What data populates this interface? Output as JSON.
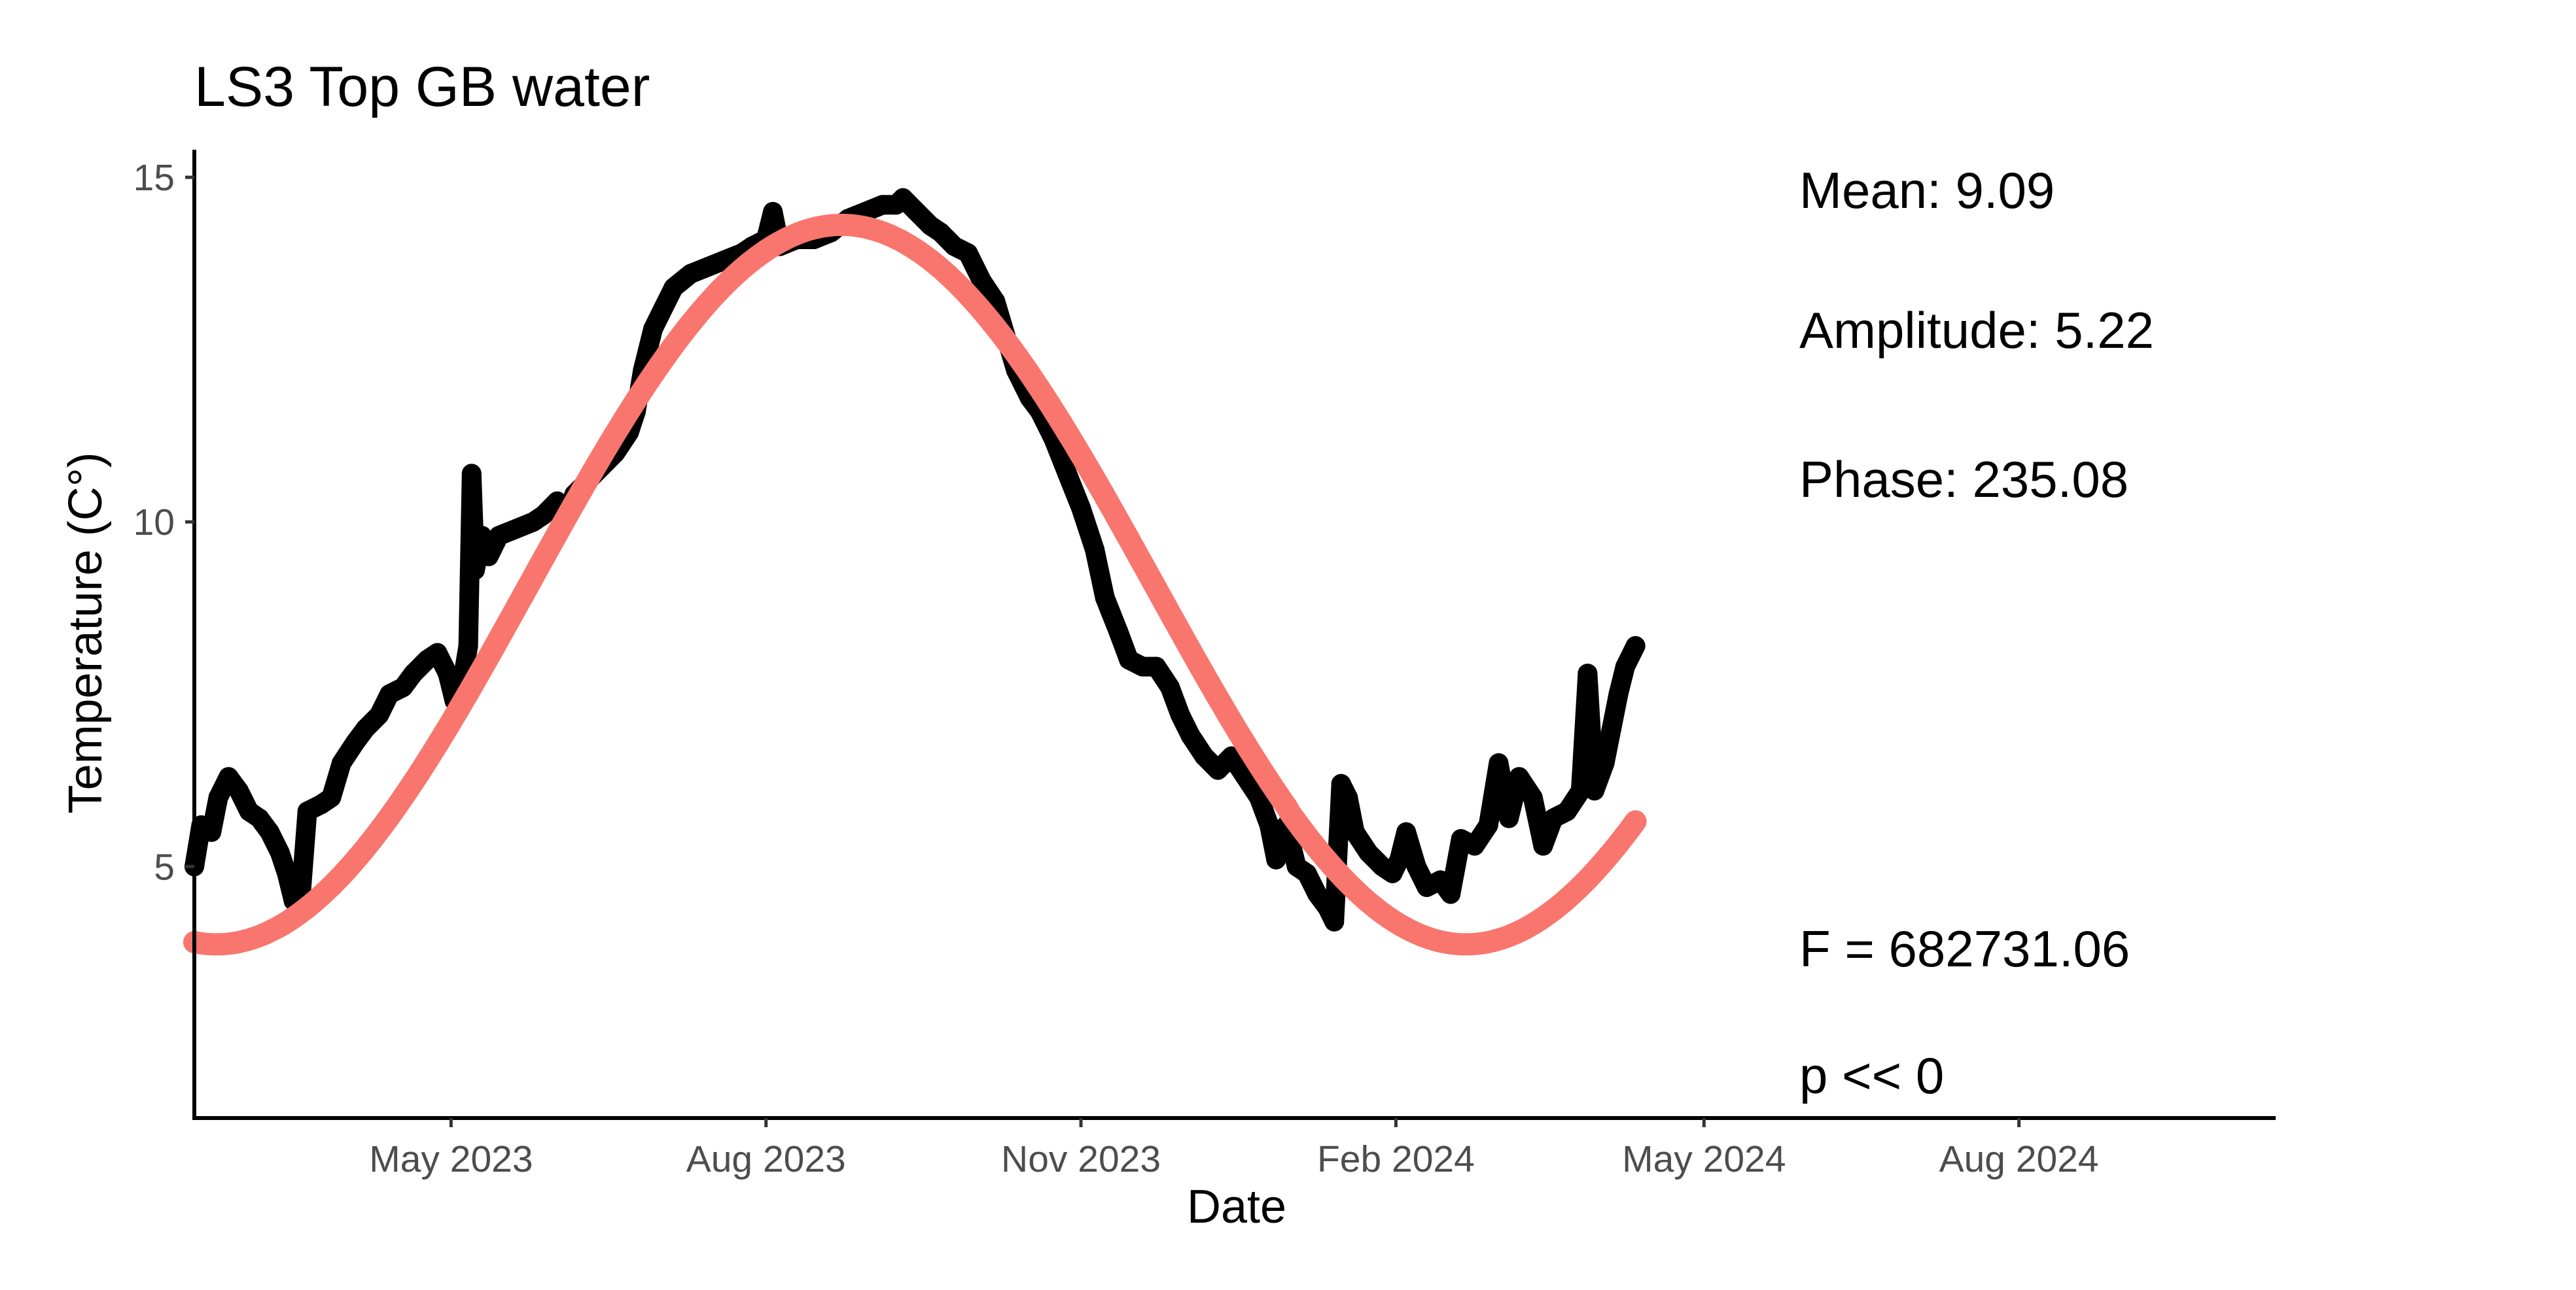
{
  "chart_data": {
    "type": "line",
    "title": "LS3 Top GB water",
    "xlabel": "Date",
    "ylabel": "Temperature (C°)",
    "x_axis_type": "date",
    "xlim": [
      "2023-02-15",
      "2024-10-15"
    ],
    "ylim": [
      1.35,
      15.4
    ],
    "x_ticks": [
      {
        "date": "2023-05-01",
        "label": "May 2023"
      },
      {
        "date": "2023-08-01",
        "label": "Aug 2023"
      },
      {
        "date": "2023-11-01",
        "label": "Nov 2023"
      },
      {
        "date": "2024-02-01",
        "label": "Feb 2024"
      },
      {
        "date": "2024-05-01",
        "label": "May 2024"
      },
      {
        "date": "2024-08-01",
        "label": "Aug 2024"
      }
    ],
    "y_ticks": [
      5,
      10,
      15
    ],
    "grid": false,
    "legend": "none",
    "series": [
      {
        "kind": "observed",
        "color": "#000000",
        "points": [
          [
            "2023-02-15",
            5.0
          ],
          [
            "2023-02-17",
            5.6
          ],
          [
            "2023-02-20",
            5.5
          ],
          [
            "2023-02-22",
            6.0
          ],
          [
            "2023-02-25",
            6.3
          ],
          [
            "2023-02-28",
            6.1
          ],
          [
            "2023-03-03",
            5.8
          ],
          [
            "2023-03-06",
            5.7
          ],
          [
            "2023-03-09",
            5.5
          ],
          [
            "2023-03-12",
            5.2
          ],
          [
            "2023-03-14",
            4.9
          ],
          [
            "2023-03-16",
            4.5
          ],
          [
            "2023-03-18",
            4.5
          ],
          [
            "2023-03-20",
            5.8
          ],
          [
            "2023-03-24",
            5.9
          ],
          [
            "2023-03-27",
            6.0
          ],
          [
            "2023-03-30",
            6.5
          ],
          [
            "2023-04-03",
            6.8
          ],
          [
            "2023-04-06",
            7.0
          ],
          [
            "2023-04-10",
            7.2
          ],
          [
            "2023-04-13",
            7.5
          ],
          [
            "2023-04-17",
            7.6
          ],
          [
            "2023-04-20",
            7.8
          ],
          [
            "2023-04-24",
            8.0
          ],
          [
            "2023-04-27",
            8.1
          ],
          [
            "2023-04-30",
            7.8
          ],
          [
            "2023-05-02",
            7.4
          ],
          [
            "2023-05-04",
            7.6
          ],
          [
            "2023-05-06",
            8.2
          ],
          [
            "2023-05-07",
            10.7
          ],
          [
            "2023-05-08",
            9.3
          ],
          [
            "2023-05-10",
            9.8
          ],
          [
            "2023-05-12",
            9.5
          ],
          [
            "2023-05-15",
            9.8
          ],
          [
            "2023-05-20",
            9.9
          ],
          [
            "2023-05-25",
            10.0
          ],
          [
            "2023-05-28",
            10.1
          ],
          [
            "2023-06-01",
            10.3
          ],
          [
            "2023-06-03",
            10.0
          ],
          [
            "2023-06-06",
            10.4
          ],
          [
            "2023-06-10",
            10.6
          ],
          [
            "2023-06-14",
            10.8
          ],
          [
            "2023-06-18",
            11.0
          ],
          [
            "2023-06-22",
            11.3
          ],
          [
            "2023-06-24",
            11.6
          ],
          [
            "2023-06-26",
            12.2
          ],
          [
            "2023-06-29",
            12.8
          ],
          [
            "2023-07-01",
            13.0
          ],
          [
            "2023-07-05",
            13.4
          ],
          [
            "2023-07-10",
            13.6
          ],
          [
            "2023-07-15",
            13.7
          ],
          [
            "2023-07-20",
            13.8
          ],
          [
            "2023-07-25",
            13.9
          ],
          [
            "2023-07-28",
            14.0
          ],
          [
            "2023-08-01",
            14.1
          ],
          [
            "2023-08-03",
            14.5
          ],
          [
            "2023-08-05",
            14.0
          ],
          [
            "2023-08-10",
            14.1
          ],
          [
            "2023-08-15",
            14.1
          ],
          [
            "2023-08-20",
            14.2
          ],
          [
            "2023-08-25",
            14.4
          ],
          [
            "2023-08-30",
            14.5
          ],
          [
            "2023-09-04",
            14.6
          ],
          [
            "2023-09-08",
            14.6
          ],
          [
            "2023-09-10",
            14.7
          ],
          [
            "2023-09-14",
            14.5
          ],
          [
            "2023-09-18",
            14.3
          ],
          [
            "2023-09-21",
            14.2
          ],
          [
            "2023-09-25",
            14.0
          ],
          [
            "2023-09-29",
            13.9
          ],
          [
            "2023-10-03",
            13.5
          ],
          [
            "2023-10-07",
            13.2
          ],
          [
            "2023-10-10",
            12.7
          ],
          [
            "2023-10-13",
            12.2
          ],
          [
            "2023-10-17",
            11.8
          ],
          [
            "2023-10-20",
            11.6
          ],
          [
            "2023-10-24",
            11.2
          ],
          [
            "2023-10-28",
            10.7
          ],
          [
            "2023-11-01",
            10.2
          ],
          [
            "2023-11-05",
            9.6
          ],
          [
            "2023-11-08",
            8.9
          ],
          [
            "2023-11-12",
            8.4
          ],
          [
            "2023-11-15",
            8.0
          ],
          [
            "2023-11-19",
            7.9
          ],
          [
            "2023-11-23",
            7.9
          ],
          [
            "2023-11-27",
            7.6
          ],
          [
            "2023-11-30",
            7.2
          ],
          [
            "2023-12-03",
            6.9
          ],
          [
            "2023-12-07",
            6.6
          ],
          [
            "2023-12-11",
            6.4
          ],
          [
            "2023-12-15",
            6.6
          ],
          [
            "2023-12-19",
            6.3
          ],
          [
            "2023-12-23",
            6.0
          ],
          [
            "2023-12-26",
            5.6
          ],
          [
            "2023-12-28",
            5.1
          ],
          [
            "2023-12-31",
            5.6
          ],
          [
            "2024-01-03",
            5.0
          ],
          [
            "2024-01-06",
            4.9
          ],
          [
            "2024-01-09",
            4.6
          ],
          [
            "2024-01-12",
            4.4
          ],
          [
            "2024-01-14",
            4.2
          ],
          [
            "2024-01-16",
            6.2
          ],
          [
            "2024-01-18",
            6.0
          ],
          [
            "2024-01-20",
            5.5
          ],
          [
            "2024-01-24",
            5.2
          ],
          [
            "2024-01-28",
            5.0
          ],
          [
            "2024-01-31",
            4.9
          ],
          [
            "2024-02-02",
            5.1
          ],
          [
            "2024-02-04",
            5.5
          ],
          [
            "2024-02-07",
            5.0
          ],
          [
            "2024-02-10",
            4.7
          ],
          [
            "2024-02-14",
            4.8
          ],
          [
            "2024-02-17",
            4.6
          ],
          [
            "2024-02-20",
            5.4
          ],
          [
            "2024-02-24",
            5.3
          ],
          [
            "2024-02-28",
            5.6
          ],
          [
            "2024-03-02",
            6.5
          ],
          [
            "2024-03-05",
            5.7
          ],
          [
            "2024-03-08",
            6.3
          ],
          [
            "2024-03-12",
            6.0
          ],
          [
            "2024-03-15",
            5.3
          ],
          [
            "2024-03-18",
            5.7
          ],
          [
            "2024-03-22",
            5.8
          ],
          [
            "2024-03-26",
            6.1
          ],
          [
            "2024-03-28",
            7.8
          ],
          [
            "2024-03-30",
            6.1
          ],
          [
            "2024-04-02",
            6.5
          ],
          [
            "2024-04-04",
            7.0
          ],
          [
            "2024-04-06",
            7.5
          ],
          [
            "2024-04-08",
            7.9
          ],
          [
            "2024-04-11",
            8.2
          ]
        ]
      },
      {
        "kind": "fit",
        "color": "#F8766D",
        "mean": 9.09,
        "amplitude": 5.22,
        "phase": 235.08,
        "start": "2023-02-15",
        "end": "2024-04-11"
      }
    ],
    "annotations": {
      "mean": "Mean: 9.09",
      "amplitude": "Amplitude: 5.22",
      "phase": "Phase: 235.08",
      "f_stat": "F =  682731.06",
      "p_value": "p <<  0"
    }
  }
}
